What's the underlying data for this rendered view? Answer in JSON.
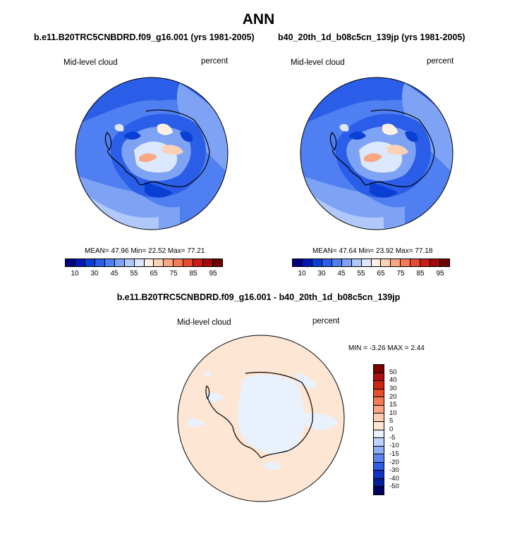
{
  "title": "ANN",
  "panels": [
    {
      "case": "b.e11.B20TRC5CNBDRD.f09_g16.001 (yrs 1981-2005)",
      "variable": "Mid-level cloud",
      "units": "percent",
      "stats": "MEAN= 47.96  Min= 22.52  Max= 77.21"
    },
    {
      "case": "b40_20th_1d_b08c5cn_139jp (yrs 1981-2005)",
      "variable": "Mid-level cloud",
      "units": "percent",
      "stats": "MEAN= 47.64  Min= 23.92  Max= 77.18"
    }
  ],
  "colorbar": {
    "labels": [
      "10",
      "30",
      "45",
      "55",
      "65",
      "75",
      "85",
      "95"
    ],
    "colors": [
      "#00007f",
      "#0018b3",
      "#0a3fd4",
      "#2a5ee8",
      "#4f7ff0",
      "#7ea3f5",
      "#b0c8fa",
      "#dce8fd",
      "#fff0e3",
      "#fdd1b5",
      "#f9a682",
      "#f47a58",
      "#e84b31",
      "#cc1d14",
      "#a00a0a",
      "#6e0000"
    ]
  },
  "diff": {
    "title": "b.e11.B20TRC5CNBDRD.f09_g16.001 - b40_20th_1d_b08c5cn_139jp",
    "variable": "Mid-level cloud",
    "units": "percent",
    "stats": "MIN =  -3.26 MAX =   2.44",
    "colorbar_labels": [
      "50",
      "40",
      "30",
      "20",
      "15",
      "10",
      "5",
      "0",
      "-5",
      "-10",
      "-15",
      "-20",
      "-30",
      "-40",
      "-50"
    ],
    "colorbar_colors": [
      "#7a0000",
      "#ad0e0e",
      "#cf2414",
      "#e84d2c",
      "#f57b57",
      "#fba383",
      "#fdcbb0",
      "#fde6d4",
      "#e9f1fc",
      "#bfd3fa",
      "#8faff5",
      "#5a85ef",
      "#2d5ee8",
      "#1233c4",
      "#061e9c",
      "#000060"
    ]
  }
}
